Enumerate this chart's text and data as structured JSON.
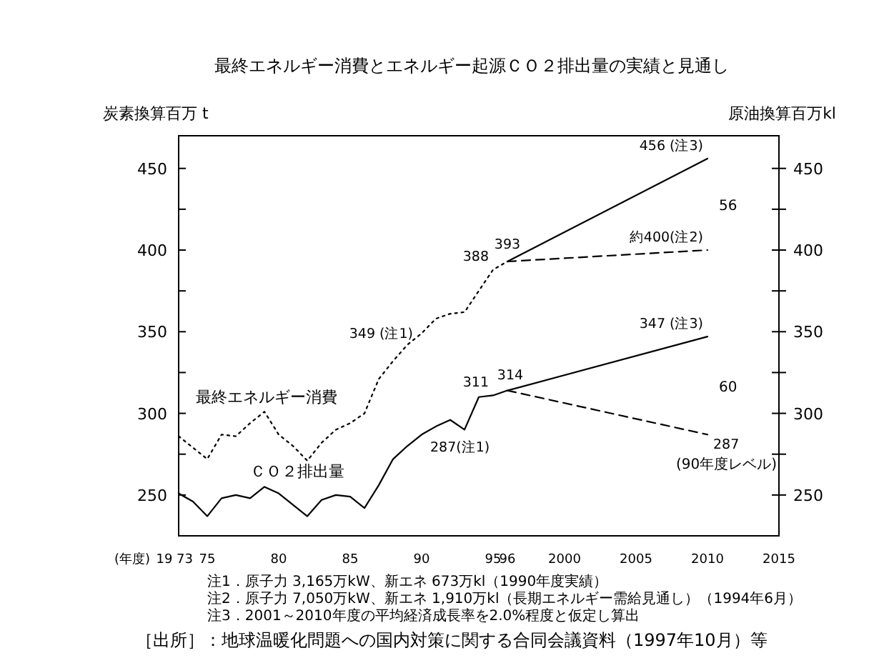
{
  "chart_data": {
    "type": "line",
    "title": "最終エネルギー消費とエネルギー起源ＣＯ２排出量の実績と見通し",
    "xlabel": "(年度)",
    "ylabel": "炭素換算百万 t",
    "y2label": "原油換算百万kl",
    "xlim": [
      1973,
      2015
    ],
    "xticks": [
      {
        "value": 1973,
        "label": "19 73"
      },
      {
        "value": 1975,
        "label": "75"
      },
      {
        "value": 1980,
        "label": "80"
      },
      {
        "value": 1985,
        "label": "85"
      },
      {
        "value": 1990,
        "label": "90"
      },
      {
        "value": 1995,
        "label": "95"
      },
      {
        "value": 1996,
        "label": "96"
      },
      2000,
      2005,
      2010,
      2015
    ],
    "ylim": [
      225,
      470
    ],
    "yticks": [
      250,
      {
        "value": 275,
        "label": null
      },
      300,
      {
        "value": 325,
        "label": null
      },
      350,
      {
        "value": 375,
        "label": null
      },
      400,
      {
        "value": 425,
        "label": null
      },
      450
    ],
    "y2lim": [
      225,
      470
    ],
    "y2ticks": [
      250,
      {
        "value": 275,
        "label": null
      },
      300,
      {
        "value": 325,
        "label": null
      },
      350,
      {
        "value": 375,
        "label": null
      },
      400,
      {
        "value": 425,
        "label": null
      },
      450
    ],
    "series": [
      {
        "name": "最終エネルギー消費",
        "axis": "y2",
        "color": "#000000",
        "line_style": "dotted",
        "x": [
          1973,
          1974,
          1975,
          1976,
          1977,
          1978,
          1979,
          1980,
          1981,
          1982,
          1983,
          1984,
          1985,
          1986,
          1987,
          1988,
          1989,
          1990,
          1991,
          1992,
          1993,
          1994,
          1995,
          1996
        ],
        "values": [
          286,
          279,
          272,
          287,
          286,
          294,
          301,
          287,
          280,
          271,
          282,
          290,
          294,
          300,
          321,
          332,
          342,
          349,
          358,
          361,
          362,
          375,
          388,
          393
        ],
        "value_labels": [
          null,
          null,
          null,
          null,
          null,
          null,
          null,
          null,
          null,
          null,
          null,
          null,
          null,
          null,
          null,
          null,
          null,
          "349 (注1)",
          null,
          null,
          null,
          null,
          "388",
          "393"
        ]
      },
      {
        "axis": "y2",
        "color": "#000000",
        "line_style": "solid",
        "x": [
          1996,
          2010
        ],
        "values": [
          393,
          456
        ],
        "value_labels": [
          null,
          "456 (注3)"
        ]
      },
      {
        "axis": "y2",
        "color": "#000000",
        "line_style": "dashed",
        "x": [
          1996,
          2010
        ],
        "values": [
          393,
          400
        ],
        "value_labels": [
          null,
          "約400(注2)"
        ]
      },
      {
        "name": "ＣＯ２排出量",
        "color": "#000000",
        "line_style": "solid",
        "x": [
          1973,
          1974,
          1975,
          1976,
          1977,
          1978,
          1979,
          1980,
          1981,
          1982,
          1983,
          1984,
          1985,
          1986,
          1987,
          1988,
          1989,
          1990,
          1991,
          1992,
          1993,
          1994,
          1995,
          1996,
          2010
        ],
        "values": [
          251,
          246,
          237,
          248,
          250,
          248,
          255,
          251,
          244,
          237,
          247,
          250,
          249,
          242,
          256,
          272,
          280,
          287,
          292,
          296,
          290,
          310,
          311,
          314,
          347
        ],
        "value_labels": [
          null,
          null,
          null,
          null,
          null,
          null,
          null,
          null,
          null,
          null,
          null,
          null,
          null,
          null,
          null,
          null,
          null,
          "287(注1)",
          null,
          null,
          null,
          null,
          "311",
          "314",
          "347 (注3)"
        ]
      },
      {
        "color": "#000000",
        "line_style": "dashed",
        "x": [
          1996,
          2010
        ],
        "values": [
          314,
          287
        ],
        "value_labels": [
          null,
          "287"
        ]
      }
    ],
    "annotations": [
      "(90年度レベル)",
      "56",
      "60",
      "注1．原子力 3,165万kW、新エネ 673万kl（1990年度実績）",
      "注2．原子力 7,050万kW、新エネ 1,910万kl（長期エネルギー需給見通し）（1994年6月）",
      "注3．2001～2010年度の平均経済成長率を2.0%程度と仮定し算出",
      "［出所］：地球温暖化問題への国内対策に関する合同会議資料（1997年10月）等"
    ]
  }
}
